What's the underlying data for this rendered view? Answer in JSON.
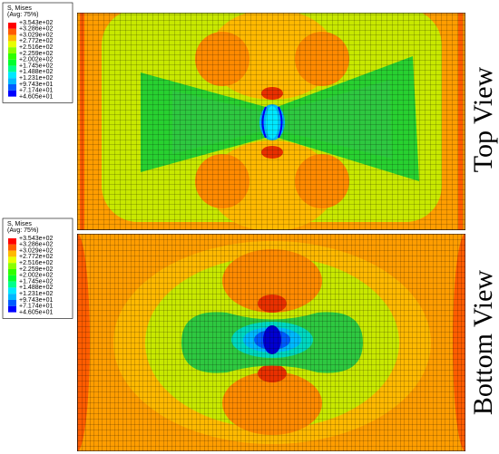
{
  "legends": [
    {
      "title": "S, Mises",
      "subtitle": "(Avg: 75%)",
      "values": [
        "+3.543e+02",
        "+3.286e+02",
        "+3.029e+02",
        "+2.772e+02",
        "+2.516e+02",
        "+2.259e+02",
        "+2.002e+02",
        "+1.745e+02",
        "+1.488e+02",
        "+1.231e+02",
        "+9.743e+01",
        "+7.174e+01",
        "+4.605e+01"
      ]
    },
    {
      "title": "S, Mises",
      "subtitle": "(Avg: 75%)",
      "values": [
        "+3.543e+02",
        "+3.286e+02",
        "+3.029e+02",
        "+2.772e+02",
        "+2.516e+02",
        "+2.259e+02",
        "+2.002e+02",
        "+1.745e+02",
        "+1.488e+02",
        "+1.231e+02",
        "+9.743e+01",
        "+7.174e+01",
        "+4.605e+01"
      ]
    }
  ],
  "views": [
    "Top View",
    "Bottom View"
  ]
}
